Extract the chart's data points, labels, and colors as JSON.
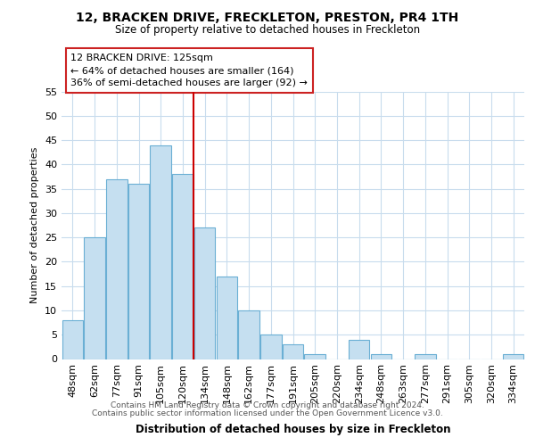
{
  "title": "12, BRACKEN DRIVE, FRECKLETON, PRESTON, PR4 1TH",
  "subtitle": "Size of property relative to detached houses in Freckleton",
  "xlabel": "Distribution of detached houses by size in Freckleton",
  "ylabel": "Number of detached properties",
  "bar_color": "#c5dff0",
  "bar_edge_color": "#6aafd4",
  "categories": [
    "48sqm",
    "62sqm",
    "77sqm",
    "91sqm",
    "105sqm",
    "120sqm",
    "134sqm",
    "148sqm",
    "162sqm",
    "177sqm",
    "191sqm",
    "205sqm",
    "220sqm",
    "234sqm",
    "248sqm",
    "263sqm",
    "277sqm",
    "291sqm",
    "305sqm",
    "320sqm",
    "334sqm"
  ],
  "values": [
    8,
    25,
    37,
    36,
    44,
    38,
    27,
    17,
    10,
    5,
    3,
    1,
    0,
    4,
    1,
    0,
    1,
    0,
    0,
    0,
    1
  ],
  "ylim": [
    0,
    55
  ],
  "yticks": [
    0,
    5,
    10,
    15,
    20,
    25,
    30,
    35,
    40,
    45,
    50,
    55
  ],
  "property_line_x": 5.5,
  "property_line_color": "#cc0000",
  "annotation_line1": "12 BRACKEN DRIVE: 125sqm",
  "annotation_line2": "← 64% of detached houses are smaller (164)",
  "annotation_line3": "36% of semi-detached houses are larger (92) →",
  "footer_line1": "Contains HM Land Registry data © Crown copyright and database right 2024.",
  "footer_line2": "Contains public sector information licensed under the Open Government Licence v3.0.",
  "background_color": "#ffffff",
  "grid_color": "#c8dced"
}
